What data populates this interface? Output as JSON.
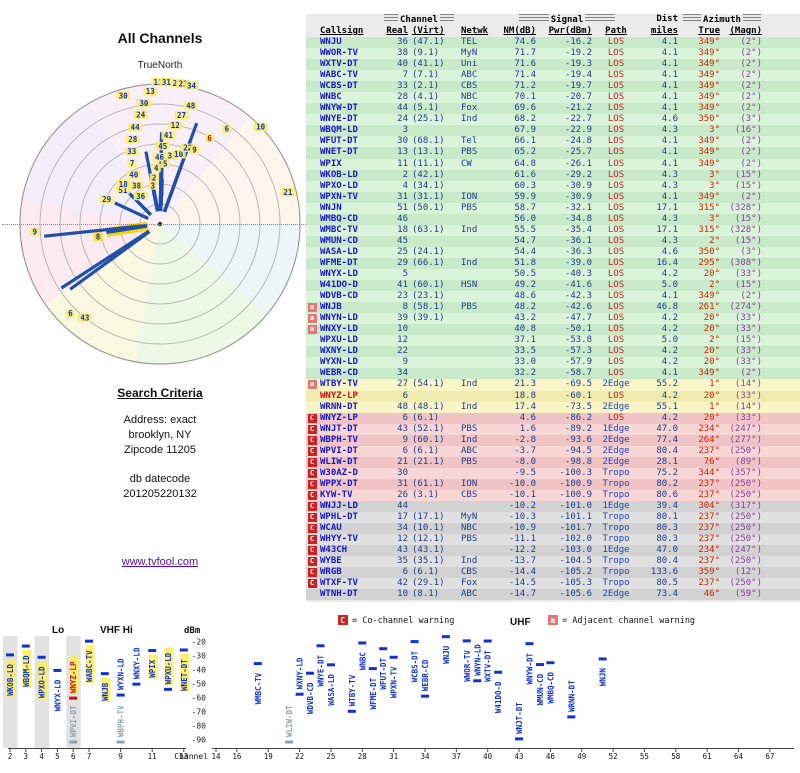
{
  "polar_panel": {
    "title": "All Channels",
    "north_label": "TrueNorth"
  },
  "search": {
    "heading": "Search Criteria",
    "address_lines": [
      "Address: exact",
      "brooklyn, NY",
      "Zipcode 11205"
    ],
    "datecode_lines": [
      "db datecode",
      "201205220132"
    ]
  },
  "link_text": "www.tvfool.com",
  "legend": {
    "co_label": "C",
    "co_text": "= Co-channel warning",
    "adj_label": "a",
    "adj_text": "= Adjacent channel warning"
  },
  "spectrum_labels": {
    "lo": "Lo",
    "vhf_hi": "VHF Hi",
    "uhf": "UHF",
    "dbm": "dBm",
    "channel": "Channel"
  },
  "table": {
    "headers": {
      "callsign": "Callsign",
      "channel": "Channel",
      "signal": "Signal",
      "dist": "Dist",
      "azimuth": "Azimuth",
      "real": "Real",
      "virt": "(Virt)",
      "netwk": "Netwk",
      "nm": "NM(dB)",
      "pwr": "Pwr(dBm)",
      "path": "Path",
      "miles": "miles",
      "true": "True",
      "magn": "(Magn)"
    },
    "rows": [
      [
        "WNJU",
        "36",
        "(47.1)",
        "TEL",
        "74.6",
        "-16.2",
        "LOS",
        "4.1",
        "349°",
        "(2°)",
        "g",
        "",
        0
      ],
      [
        "WWOR-TV",
        "38",
        "(9.1)",
        "MyN",
        "71.7",
        "-19.2",
        "LOS",
        "4.1",
        "349°",
        "(2°)",
        "g",
        "",
        0
      ],
      [
        "WXTV-DT",
        "40",
        "(41.1)",
        "Uni",
        "71.6",
        "-19.3",
        "LOS",
        "4.1",
        "349°",
        "(2°)",
        "g",
        "",
        0
      ],
      [
        "WABC-TV",
        "7",
        "(7.1)",
        "ABC",
        "71.4",
        "-19.4",
        "LOS",
        "4.1",
        "349°",
        "(2°)",
        "g",
        "",
        0
      ],
      [
        "WCBS-DT",
        "33",
        "(2.1)",
        "CBS",
        "71.2",
        "-19.7",
        "LOS",
        "4.1",
        "349°",
        "(2°)",
        "g",
        "",
        0
      ],
      [
        "WNBC",
        "28",
        "(4.1)",
        "NBC",
        "70.1",
        "-20.7",
        "LOS",
        "4.1",
        "349°",
        "(2°)",
        "g",
        "",
        0
      ],
      [
        "WNYW-DT",
        "44",
        "(5.1)",
        "Fox",
        "69.6",
        "-21.2",
        "LOS",
        "4.1",
        "349°",
        "(2°)",
        "g",
        "",
        0
      ],
      [
        "WNYE-DT",
        "24",
        "(25.1)",
        "Ind",
        "68.2",
        "-22.7",
        "LOS",
        "4.6",
        "350°",
        "(3°)",
        "g",
        "",
        0
      ],
      [
        "WBQM-LD",
        "3",
        "",
        "",
        "67.9",
        "-22.9",
        "LOS",
        "4.3",
        "3°",
        "(16°)",
        "g",
        "",
        0
      ],
      [
        "WFUT-DT",
        "30",
        "(68.1)",
        "Tel",
        "66.1",
        "-24.8",
        "LOS",
        "4.1",
        "349°",
        "(2°)",
        "g",
        "",
        0
      ],
      [
        "WNET-DT",
        "13",
        "(13.1)",
        "PBS",
        "65.2",
        "-25.7",
        "LOS",
        "4.1",
        "349°",
        "(2°)",
        "g",
        "",
        0
      ],
      [
        "WPIX",
        "11",
        "(11.1)",
        "CW",
        "64.8",
        "-26.1",
        "LOS",
        "4.1",
        "349°",
        "(2°)",
        "g",
        "",
        0
      ],
      [
        "WKOB-LD",
        "2",
        "(42.1)",
        "",
        "61.6",
        "-29.2",
        "LOS",
        "4.3",
        "3°",
        "(15°)",
        "g",
        "",
        0
      ],
      [
        "WPXO-LD",
        "4",
        "(34.1)",
        "",
        "60.3",
        "-30.9",
        "LOS",
        "4.3",
        "3°",
        "(15°)",
        "g",
        "",
        0
      ],
      [
        "WPXN-TV",
        "31",
        "(31.1)",
        "ION",
        "59.9",
        "-30.9",
        "LOS",
        "4.1",
        "349°",
        "(2°)",
        "g",
        "",
        0
      ],
      [
        "WNJN",
        "51",
        "(50.1)",
        "PBS",
        "58.7",
        "-32.1",
        "LOS",
        "17.1",
        "315°",
        "(328°)",
        "g",
        "",
        0
      ],
      [
        "WMBQ-CD",
        "46",
        "",
        "",
        "56.0",
        "-34.8",
        "LOS",
        "4.3",
        "3°",
        "(15°)",
        "g",
        "",
        0
      ],
      [
        "WMBC-TV",
        "18",
        "(63.1)",
        "Ind",
        "55.5",
        "-35.4",
        "LOS",
        "17.1",
        "315°",
        "(328°)",
        "g",
        "",
        0
      ],
      [
        "WMUN-CD",
        "45",
        "",
        "",
        "54.7",
        "-36.1",
        "LOS",
        "4.3",
        "2°",
        "(15°)",
        "g",
        "",
        0
      ],
      [
        "WASA-LD",
        "25",
        "(24.1)",
        "",
        "54.4",
        "-36.3",
        "LOS",
        "4.6",
        "350°",
        "(3°)",
        "g",
        "",
        0
      ],
      [
        "WFME-DT",
        "29",
        "(66.1)",
        "Ind",
        "51.8",
        "-39.0",
        "LOS",
        "16.4",
        "295°",
        "(308°)",
        "g",
        "",
        0
      ],
      [
        "WNYX-LD",
        "5",
        "",
        "",
        "50.5",
        "-40.3",
        "LOS",
        "4.2",
        "20°",
        "(33°)",
        "g",
        "",
        0
      ],
      [
        "W41DO-D",
        "41",
        "(60.1)",
        "HSN",
        "49.2",
        "-41.6",
        "LOS",
        "5.0",
        "2°",
        "(15°)",
        "g",
        "",
        0
      ],
      [
        "WDVB-CD",
        "23",
        "(23.1)",
        "",
        "48.6",
        "-42.3",
        "LOS",
        "4.1",
        "349°",
        "(2°)",
        "g",
        "",
        0
      ],
      [
        "WNJB",
        "8",
        "(58.1)",
        "PBS",
        "48.2",
        "-42.6",
        "LOS",
        "46.8",
        "261°",
        "(274°)",
        "g",
        "a",
        0
      ],
      [
        "WNYN-LD",
        "39",
        "(39.1)",
        "",
        "43.2",
        "-47.7",
        "LOS",
        "4.2",
        "20°",
        "(33°)",
        "g",
        "a",
        0
      ],
      [
        "WNXY-LD",
        "10",
        "",
        "",
        "40.8",
        "-50.1",
        "LOS",
        "4.2",
        "20°",
        "(33°)",
        "g",
        "a",
        0
      ],
      [
        "WPXU-LD",
        "12",
        "",
        "",
        "37.1",
        "-53.8",
        "LOS",
        "5.0",
        "2°",
        "(15°)",
        "g",
        "",
        0
      ],
      [
        "WXNY-LD",
        "22",
        "",
        "",
        "33.5",
        "-57.3",
        "LOS",
        "4.2",
        "20°",
        "(33°)",
        "g",
        "",
        0
      ],
      [
        "WYXN-LD",
        "9",
        "",
        "",
        "33.0",
        "-57.9",
        "LOS",
        "4.2",
        "20°",
        "(33°)",
        "g",
        "",
        0
      ],
      [
        "WEBR-CD",
        "34",
        "",
        "",
        "32.2",
        "-58.7",
        "LOS",
        "4.1",
        "349°",
        "(2°)",
        "g",
        "",
        0
      ],
      [
        "WTBY-TV",
        "27",
        "(54.1)",
        "Ind",
        "21.3",
        "-69.5",
        "2Edge",
        "55.2",
        "1°",
        "(14°)",
        "y",
        "a",
        0
      ],
      [
        "WNYZ-LP",
        "6",
        "",
        "",
        "18.8",
        "-60.1",
        "LOS",
        "4.2",
        "20°",
        "(33°)",
        "y",
        "",
        1
      ],
      [
        "WRNN-DT",
        "48",
        "(48.1)",
        "Ind",
        "17.4",
        "-73.5",
        "2Edge",
        "55.1",
        "1°",
        "(14°)",
        "y",
        "",
        0
      ],
      [
        "WNYZ-LP",
        "6",
        "(6.1)",
        "",
        "4.6",
        "-86.2",
        "LOS",
        "4.2",
        "20°",
        "(33°)",
        "p",
        "C",
        0
      ],
      [
        "WNJT-DT",
        "43",
        "(52.1)",
        "PBS",
        "1.6",
        "-89.2",
        "1Edge",
        "47.0",
        "234°",
        "(247°)",
        "p",
        "C",
        0
      ],
      [
        "WBPH-TV",
        "9",
        "(60.1)",
        "Ind",
        "-2.8",
        "-93.6",
        "2Edge",
        "77.4",
        "264°",
        "(277°)",
        "p",
        "C",
        0
      ],
      [
        "WPVI-DT",
        "6",
        "(6.1)",
        "ABC",
        "-3.7",
        "-94.5",
        "2Edge",
        "80.4",
        "237°",
        "(250°)",
        "p",
        "C",
        0
      ],
      [
        "WLIW-DT",
        "21",
        "(21.1)",
        "PBS",
        "-8.0",
        "-98.8",
        "2Edge",
        "28.1",
        "76°",
        "(89°)",
        "p",
        "C",
        0
      ],
      [
        "W30AZ-D",
        "30",
        "",
        "",
        "-9.5",
        "-100.3",
        "Tropo",
        "75.2",
        "344°",
        "(357°)",
        "p",
        "C",
        0
      ],
      [
        "WPPX-DT",
        "31",
        "(61.1)",
        "ION",
        "-10.0",
        "-100.9",
        "Tropo",
        "80.2",
        "237°",
        "(250°)",
        "p",
        "C",
        0
      ],
      [
        "KYW-TV",
        "26",
        "(3.1)",
        "CBS",
        "-10.1",
        "-100.9",
        "Tropo",
        "80.6",
        "237°",
        "(250°)",
        "p",
        "C",
        0
      ],
      [
        "WNJJ-LD",
        "44",
        "",
        "",
        "-10.2",
        "-101.0",
        "1Edge",
        "39.4",
        "304°",
        "(317°)",
        "d",
        "C",
        0
      ],
      [
        "WPHL-DT",
        "17",
        "(17.1)",
        "MyN",
        "-10.3",
        "-101.1",
        "Tropo",
        "80.1",
        "237°",
        "(250°)",
        "d",
        "C",
        0
      ],
      [
        "WCAU",
        "34",
        "(10.1)",
        "NBC",
        "-10.9",
        "-101.7",
        "Tropo",
        "80.3",
        "237°",
        "(250°)",
        "d",
        "C",
        0
      ],
      [
        "WHYY-TV",
        "12",
        "(12.1)",
        "PBS",
        "-11.1",
        "-102.0",
        "Tropo",
        "80.3",
        "237°",
        "(250°)",
        "d",
        "C",
        0
      ],
      [
        "W43CH",
        "43",
        "(43.1)",
        "",
        "-12.2",
        "-103.0",
        "1Edge",
        "47.0",
        "234°",
        "(247°)",
        "d",
        "C",
        0
      ],
      [
        "WYBE",
        "35",
        "(35.1)",
        "Ind",
        "-13.7",
        "-104.5",
        "Tropo",
        "80.4",
        "237°",
        "(250°)",
        "d",
        "C",
        0
      ],
      [
        "WRGB",
        "6",
        "(6.1)",
        "CBS",
        "-14.4",
        "-105.2",
        "Tropo",
        "133.6",
        "359°",
        "(12°)",
        "d",
        "C",
        0
      ],
      [
        "WTXF-TV",
        "42",
        "(29.1)",
        "Fox",
        "-14.5",
        "-105.3",
        "Tropo",
        "80.5",
        "237°",
        "(250°)",
        "d",
        "C",
        0
      ],
      [
        "WTNH-DT",
        "10",
        "(8.1)",
        "ABC",
        "-14.7",
        "-105.6",
        "2Edge",
        "73.4",
        "46°",
        "(59°)",
        "d",
        "",
        0
      ]
    ]
  },
  "chart_data": [
    {
      "type": "scatter",
      "subtype": "polar",
      "title": "All Channels",
      "north_label": "TrueNorth",
      "angle": "true azimuth degrees",
      "radius": "weaker NM(dB) plotted farther from center",
      "points": [
        [
          36,
          349,
          74.6
        ],
        [
          38,
          349,
          71.7
        ],
        [
          40,
          349,
          71.6
        ],
        [
          7,
          349,
          71.4
        ],
        [
          33,
          349,
          71.2
        ],
        [
          28,
          349,
          70.1
        ],
        [
          44,
          349,
          69.6
        ],
        [
          24,
          350,
          68.2
        ],
        [
          3,
          3,
          67.9
        ],
        [
          30,
          349,
          66.1
        ],
        [
          13,
          349,
          65.2
        ],
        [
          11,
          349,
          64.8
        ],
        [
          2,
          3,
          61.6
        ],
        [
          4,
          3,
          60.3
        ],
        [
          31,
          349,
          59.9
        ],
        [
          51,
          315,
          58.7
        ],
        [
          46,
          3,
          56.0
        ],
        [
          18,
          315,
          55.5
        ],
        [
          45,
          2,
          54.7
        ],
        [
          25,
          350,
          54.4
        ],
        [
          29,
          295,
          51.8
        ],
        [
          5,
          20,
          50.5
        ],
        [
          41,
          2,
          49.2
        ],
        [
          23,
          349,
          48.6
        ],
        [
          8,
          261,
          48.2,
          "s"
        ],
        [
          39,
          20,
          43.2
        ],
        [
          10,
          20,
          40.8
        ],
        [
          12,
          2,
          37.1
        ],
        [
          22,
          20,
          33.5
        ],
        [
          9,
          20,
          33.0
        ],
        [
          34,
          349,
          32.2
        ],
        [
          27,
          1,
          21.3
        ],
        [
          6,
          20,
          18.8,
          "r"
        ],
        [
          48,
          1,
          17.4
        ],
        [
          6,
          20,
          4.6
        ],
        [
          43,
          234,
          1.6
        ],
        [
          9,
          264,
          -2.8
        ],
        [
          6,
          237,
          -3.7
        ],
        [
          21,
          76,
          -8.0
        ],
        [
          30,
          344,
          -9.5
        ],
        [
          31,
          237,
          -10.0
        ],
        [
          26,
          237,
          -10.1
        ],
        [
          44,
          304,
          -10.2
        ],
        [
          17,
          237,
          -10.3
        ],
        [
          34,
          237,
          -10.9
        ],
        [
          12,
          237,
          -11.1
        ],
        [
          43,
          234,
          -12.2
        ],
        [
          35,
          237,
          -13.7
        ],
        [
          6,
          359,
          -14.4
        ],
        [
          42,
          237,
          -14.5
        ],
        [
          10,
          46,
          -14.7
        ]
      ]
    },
    {
      "type": "scatter",
      "subtype": "spectrum",
      "xlabel": "Channel",
      "ylabel": "dBm",
      "ylim": [
        -90,
        -20
      ],
      "bands": [
        "Lo",
        "VHF Hi",
        "UHF"
      ],
      "dbm_ticks": [
        -20,
        -30,
        -40,
        -50,
        -60,
        -70,
        -80,
        -90
      ],
      "left_ticks": [
        2,
        3,
        4,
        5,
        6,
        7,
        9,
        11,
        13
      ],
      "right_ticks": [
        14,
        16,
        19,
        22,
        25,
        28,
        31,
        34,
        37,
        40,
        43,
        46,
        49,
        52,
        55,
        58,
        61,
        64,
        67
      ],
      "points": [
        [
          "WKOB-LD",
          2,
          -29.2,
          "h"
        ],
        [
          "WBQM-LD",
          3,
          -22.9,
          "h"
        ],
        [
          "WPXO-LD",
          4,
          -30.9,
          "h"
        ],
        [
          "WNYX-LD",
          5,
          -40.3,
          ""
        ],
        [
          "WNYZ-LP",
          6,
          -60.1,
          "hr"
        ],
        [
          "WABC-TV",
          7,
          -19.4,
          "h"
        ],
        [
          "WNJB",
          8,
          -42.6,
          "h"
        ],
        [
          "WYXN-LD",
          9,
          -57.9,
          ""
        ],
        [
          "WNXY-LD",
          10,
          -50.1,
          ""
        ],
        [
          "WPIX",
          11,
          -26.1,
          "h"
        ],
        [
          "WPXU-LD",
          12,
          -53.8,
          "h"
        ],
        [
          "WNET-DT",
          13,
          -25.7,
          "h"
        ],
        [
          "WPVI-DT",
          6,
          -94.5,
          "g"
        ],
        [
          "WBPH-TV",
          9,
          -93.6,
          "g"
        ],
        [
          "WMBC-TV",
          18,
          -35.4,
          ""
        ],
        [
          "WLIW-DT",
          21,
          -98.8,
          "g"
        ],
        [
          "WXNY-LD",
          22,
          -57.3,
          ""
        ],
        [
          "WDVB-CD",
          23,
          -42.3,
          ""
        ],
        [
          "WNYE-DT",
          24,
          -22.7,
          ""
        ],
        [
          "WASA-LD",
          25,
          -36.3,
          ""
        ],
        [
          "WTBY-TV",
          27,
          -69.5,
          ""
        ],
        [
          "WNBC",
          28,
          -20.7,
          ""
        ],
        [
          "WFME-DT",
          29,
          -39.0,
          ""
        ],
        [
          "WFUT-DT",
          30,
          -24.8,
          ""
        ],
        [
          "WPXN-TV",
          31,
          -30.9,
          ""
        ],
        [
          "WCBS-DT",
          33,
          -19.7,
          ""
        ],
        [
          "WEBR-CD",
          34,
          -58.7,
          ""
        ],
        [
          "WNJU",
          36,
          -16.2,
          ""
        ],
        [
          "WWOR-TV",
          38,
          -19.2,
          ""
        ],
        [
          "WNYN-LD",
          39,
          -47.7,
          ""
        ],
        [
          "WXTV-DT",
          40,
          -19.3,
          ""
        ],
        [
          "W41DO-D",
          41,
          -41.6,
          ""
        ],
        [
          "WNJT-DT",
          43,
          -89.2,
          ""
        ],
        [
          "WNYW-DT",
          44,
          -21.2,
          ""
        ],
        [
          "WMUN-CD",
          45,
          -36.1,
          ""
        ],
        [
          "WMBQ-CD",
          46,
          -34.8,
          ""
        ],
        [
          "WRNN-DT",
          48,
          -73.5,
          ""
        ],
        [
          "WNJN",
          51,
          -32.1,
          ""
        ]
      ]
    }
  ]
}
